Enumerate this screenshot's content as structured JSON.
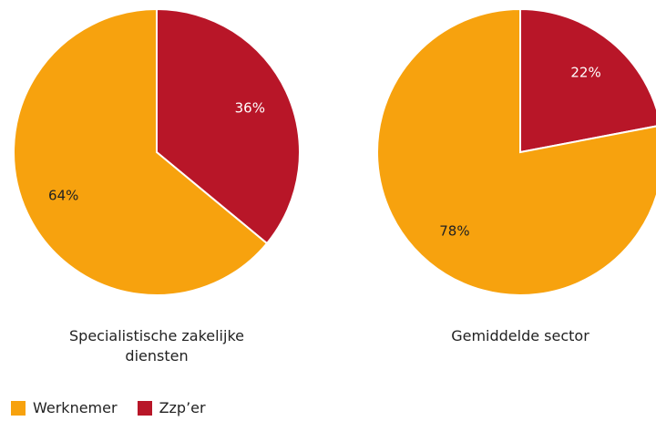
{
  "legend": [
    {
      "name": "Werknemer",
      "color": "#f7a20e"
    },
    {
      "name": "Zzp’er",
      "color": "#b81628"
    }
  ],
  "chart_data": [
    {
      "type": "pie",
      "title": "Specialistische zakelijke diensten",
      "values": [
        64,
        36
      ],
      "value_labels": [
        "64%",
        "36%"
      ]
    },
    {
      "type": "pie",
      "title": "Gemiddelde sector",
      "values": [
        78,
        22
      ],
      "value_labels": [
        "78%",
        "22%"
      ]
    }
  ]
}
